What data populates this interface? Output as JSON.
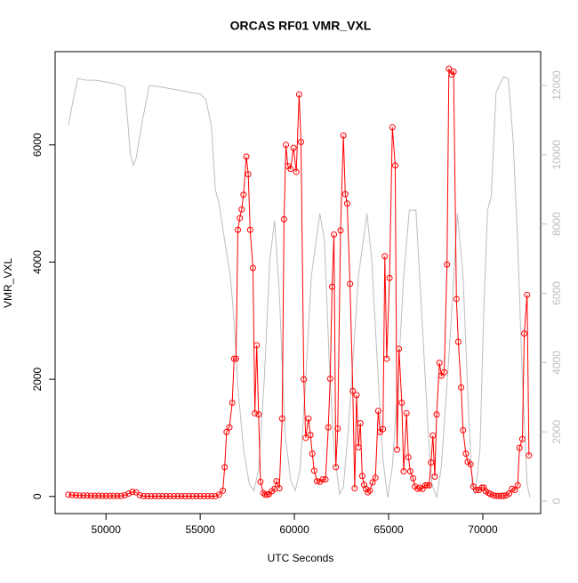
{
  "chart_data": {
    "type": "line",
    "title": "ORCAS RF01 VMR_VXL",
    "x_label": "UTC Seconds",
    "y_label": "VMR_VXL",
    "xlim": [
      47300,
      73070
    ],
    "xticks": [
      50000,
      55000,
      60000,
      65000,
      70000
    ],
    "ylim": [
      -292,
      7592
    ],
    "yticks": [
      0,
      2000,
      4000,
      6000
    ],
    "y2lim": [
      -360,
      12977
    ],
    "y2ticks": [
      0,
      2000,
      4000,
      6000,
      8000,
      10000,
      12000
    ],
    "series": [
      {
        "color": "#ff0000",
        "markers": true,
        "x": [
          48000,
          48200,
          48400,
          48600,
          48800,
          49000,
          49200,
          49400,
          49600,
          49800,
          50000,
          50200,
          50400,
          50600,
          50800,
          51000,
          51200,
          51400,
          51600,
          51800,
          52000,
          52200,
          52400,
          52600,
          52800,
          53000,
          53200,
          53400,
          53600,
          53800,
          54000,
          54200,
          54400,
          54600,
          54800,
          55000,
          55200,
          55400,
          55600,
          55800,
          56000,
          56200,
          56300,
          56400,
          56550,
          56700,
          56800,
          56900,
          57000,
          57100,
          57200,
          57300,
          57450,
          57550,
          57650,
          57800,
          57900,
          58000,
          58100,
          58200,
          58350,
          58450,
          58550,
          58650,
          58800,
          58950,
          59050,
          59200,
          59350,
          59450,
          59550,
          59650,
          59800,
          59950,
          60100,
          60250,
          60350,
          60500,
          60600,
          60750,
          60850,
          60950,
          61050,
          61200,
          61350,
          61500,
          61650,
          61800,
          61900,
          62000,
          62100,
          62200,
          62300,
          62450,
          62600,
          62700,
          62800,
          62950,
          63100,
          63200,
          63300,
          63400,
          63500,
          63600,
          63700,
          63800,
          63900,
          64000,
          64150,
          64300,
          64450,
          64550,
          64700,
          64800,
          64900,
          65050,
          65200,
          65350,
          65450,
          65550,
          65700,
          65800,
          65950,
          66050,
          66150,
          66300,
          66400,
          66550,
          66650,
          66800,
          66950,
          67050,
          67150,
          67250,
          67350,
          67450,
          67550,
          67700,
          67800,
          67950,
          68100,
          68200,
          68350,
          68450,
          68600,
          68700,
          68850,
          68950,
          69100,
          69200,
          69350,
          69500,
          69650,
          69800,
          69950,
          70050,
          70150,
          70300,
          70400,
          70550,
          70700,
          70850,
          71000,
          71100,
          71250,
          71400,
          71550,
          71700,
          71850,
          71950,
          72100,
          72200,
          72350,
          72450
        ],
        "values": [
          30,
          25,
          20,
          15,
          15,
          15,
          12,
          12,
          12,
          10,
          10,
          10,
          10,
          10,
          10,
          20,
          50,
          80,
          70,
          20,
          5,
          5,
          5,
          5,
          5,
          5,
          5,
          5,
          5,
          5,
          5,
          5,
          5,
          5,
          5,
          5,
          5,
          5,
          5,
          5,
          30,
          100,
          500,
          1100,
          1180,
          1600,
          2350,
          2350,
          4550,
          4750,
          4900,
          5150,
          5800,
          5500,
          4550,
          3900,
          1420,
          2580,
          1400,
          250,
          60,
          30,
          30,
          40,
          90,
          130,
          260,
          140,
          1330,
          4730,
          6000,
          5640,
          5590,
          5950,
          5540,
          6860,
          6050,
          2000,
          1000,
          1330,
          1050,
          730,
          440,
          260,
          250,
          290,
          290,
          1180,
          2010,
          3580,
          4470,
          500,
          1160,
          4540,
          6160,
          5160,
          5000,
          3630,
          1800,
          140,
          1730,
          840,
          1250,
          350,
          200,
          130,
          70,
          100,
          240,
          320,
          1460,
          1100,
          1150,
          4100,
          2350,
          3730,
          6300,
          5650,
          800,
          2520,
          1600,
          430,
          1420,
          670,
          430,
          310,
          170,
          130,
          150,
          130,
          190,
          190,
          190,
          580,
          1040,
          340,
          1400,
          2280,
          2060,
          2120,
          3960,
          7300,
          7200,
          7250,
          3370,
          2640,
          1860,
          1130,
          730,
          590,
          550,
          170,
          110,
          110,
          150,
          150,
          90,
          60,
          40,
          20,
          10,
          10,
          10,
          10,
          20,
          50,
          130,
          110,
          190,
          830,
          980,
          2780,
          3440,
          700
        ]
      },
      {
        "color": "#bebebe",
        "axis": "y2",
        "markers": false,
        "x": [
          48000,
          48300,
          48500,
          49000,
          49500,
          50000,
          50500,
          51000,
          51300,
          51450,
          51600,
          51900,
          52300,
          53000,
          54000,
          55000,
          55300,
          55600,
          55800,
          56000,
          56300,
          56600,
          56800,
          57000,
          57300,
          57600,
          57850,
          58100,
          58400,
          58700,
          58950,
          59200,
          59500,
          59800,
          60050,
          60300,
          60600,
          60900,
          61350,
          61600,
          61850,
          62100,
          62400,
          62600,
          62850,
          63100,
          63400,
          63850,
          64100,
          64400,
          64700,
          64950,
          65200,
          65500,
          65800,
          66100,
          66450,
          66700,
          66900,
          67100,
          67300,
          67550,
          67800,
          68050,
          68300,
          68650,
          68950,
          69250,
          69450,
          69600,
          69850,
          70050,
          70250,
          70450,
          70700,
          71100,
          71350,
          71600,
          71850,
          72100,
          72350,
          72500
        ],
        "values": [
          10850,
          11700,
          12200,
          12150,
          12150,
          12100,
          12050,
          11950,
          10000,
          9700,
          9900,
          10900,
          12000,
          11950,
          11850,
          11750,
          11600,
          10800,
          9000,
          8600,
          7500,
          6500,
          5200,
          3300,
          1500,
          500,
          300,
          900,
          3500,
          7000,
          8100,
          6000,
          2000,
          600,
          300,
          900,
          3500,
          6500,
          8300,
          7500,
          4000,
          1500,
          200,
          400,
          2000,
          4000,
          6500,
          8300,
          7000,
          4000,
          1200,
          100,
          1000,
          3500,
          6500,
          8400,
          8400,
          6000,
          4000,
          2000,
          500,
          100,
          1000,
          3000,
          5000,
          8300,
          6500,
          2500,
          400,
          200,
          1500,
          5500,
          8400,
          8800,
          11800,
          12250,
          12200,
          10500,
          7500,
          3500,
          500,
          100
        ]
      }
    ]
  }
}
